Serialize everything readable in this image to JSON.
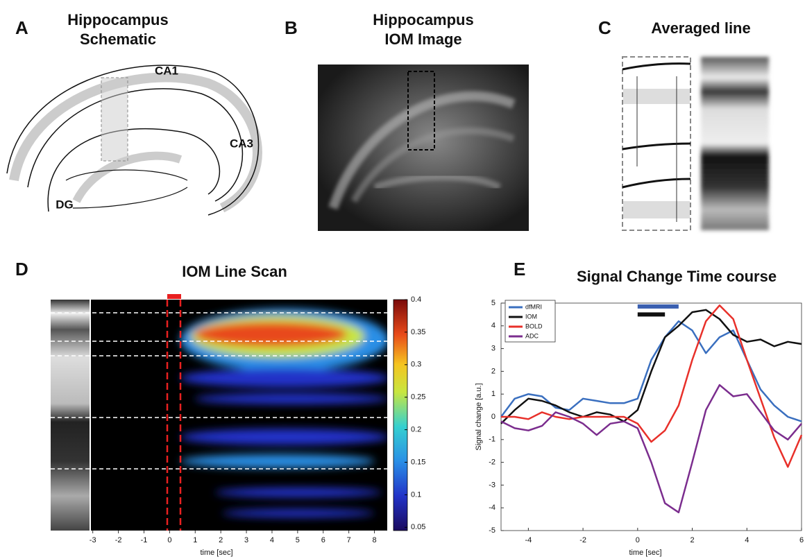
{
  "panel_a": {
    "letter": "A",
    "title_line1": "Hippocampus",
    "title_line2": "Schematic",
    "labels": [
      "CA1",
      "CA3",
      "DG"
    ]
  },
  "panel_b": {
    "letter": "B",
    "title_line1": "Hippocampus",
    "title_line2": "IOM Image"
  },
  "panel_c": {
    "letter": "C",
    "title": "Averaged line"
  },
  "panel_d": {
    "letter": "D",
    "title": "IOM Line Scan",
    "xlabel": "time [sec]",
    "xlim": [
      -3.1,
      8.5
    ],
    "xticks": [
      -3,
      -2,
      -1,
      0,
      1,
      2,
      3,
      4,
      5,
      6,
      7,
      8
    ],
    "clim": [
      0.045,
      0.4
    ],
    "cticks": [
      0.05,
      0.1,
      0.15,
      0.2,
      0.25,
      0.3,
      0.35,
      0.4
    ]
  },
  "chart_data": {
    "type": "line",
    "letter": "E",
    "title": "Signal Change Time course",
    "xlabel": "time [sec]",
    "ylabel": "Signal change [a.u.]",
    "xlim": [
      -5,
      6
    ],
    "ylim": [
      -5,
      5
    ],
    "xticks": [
      -4,
      -2,
      0,
      2,
      4,
      6
    ],
    "yticks": [
      -5,
      -4,
      -3,
      -2,
      -1,
      0,
      1,
      2,
      3,
      4,
      5
    ],
    "legend": "upper left",
    "x": [
      -5,
      -4.5,
      -4,
      -3.5,
      -3,
      -2.5,
      -2,
      -1.5,
      -1,
      -0.5,
      0,
      0.5,
      1,
      1.5,
      2,
      2.5,
      3,
      3.5,
      4,
      4.5,
      5,
      5.5,
      6
    ],
    "series": [
      {
        "name": "dfMRI",
        "color": "#3a6fbf",
        "values": [
          0,
          0.8,
          1.0,
          0.9,
          0.4,
          0.3,
          0.8,
          0.7,
          0.6,
          0.6,
          0.8,
          2.5,
          3.5,
          4.2,
          3.8,
          2.8,
          3.5,
          3.8,
          2.5,
          1.2,
          0.5,
          0,
          -0.2
        ]
      },
      {
        "name": "IOM",
        "color": "#111111",
        "values": [
          -0.3,
          0.3,
          0.8,
          0.7,
          0.5,
          0.2,
          0,
          0.2,
          0.1,
          -0.2,
          0.3,
          2.0,
          3.5,
          4.0,
          4.6,
          4.7,
          4.3,
          3.6,
          3.3,
          3.4,
          3.1,
          3.3,
          3.2
        ]
      },
      {
        "name": "BOLD",
        "color": "#e8302a",
        "values": [
          0,
          0,
          -0.1,
          0.2,
          0,
          -0.1,
          0,
          0,
          0,
          0,
          -0.3,
          -1.1,
          -0.6,
          0.5,
          2.5,
          4.2,
          4.9,
          4.3,
          2.5,
          0.8,
          -0.9,
          -2.2,
          -0.8
        ]
      },
      {
        "name": "ADC",
        "color": "#7b2d8e",
        "values": [
          -0.2,
          -0.5,
          -0.6,
          -0.4,
          0.2,
          0,
          -0.3,
          -0.8,
          -0.3,
          -0.2,
          -0.5,
          -2.0,
          -3.8,
          -4.2,
          -2.0,
          0.3,
          1.4,
          0.9,
          1.0,
          0.2,
          -0.6,
          -1.0,
          -0.3
        ]
      }
    ],
    "stimulus": [
      {
        "color": "#3a5fb0",
        "start": 0,
        "end": 1.5,
        "y": 4.85
      },
      {
        "color": "#111111",
        "start": 0,
        "end": 1,
        "y": 4.5
      }
    ]
  }
}
